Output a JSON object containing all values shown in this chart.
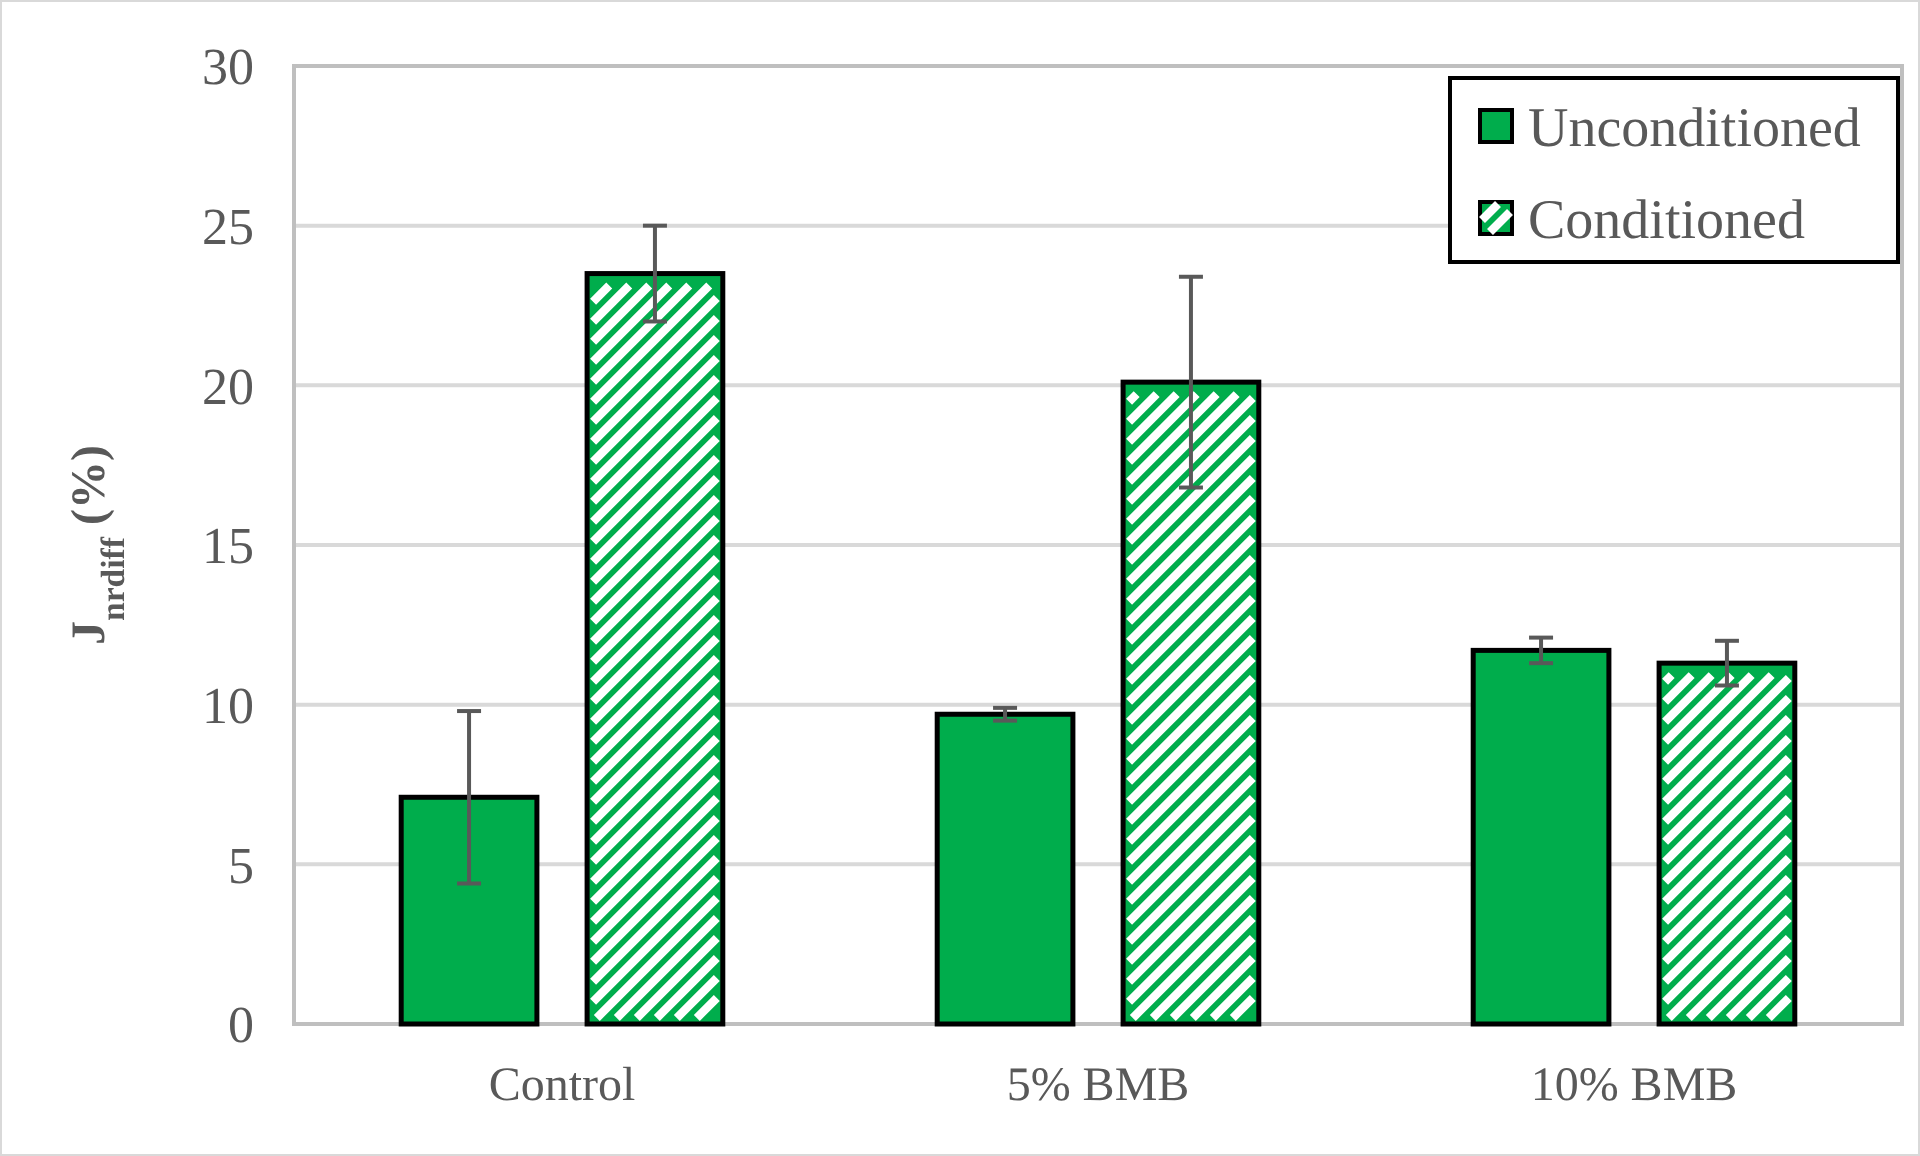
{
  "chart_data": {
    "type": "bar",
    "ylabel": "J$_{nrdiff}$ (%)",
    "categories": [
      "Control",
      "5% BMB",
      "10% BMB"
    ],
    "series": [
      {
        "name": "Unconditioned",
        "color": "#00ad4c",
        "values": [
          7.1,
          9.7,
          11.7
        ],
        "errors": [
          2.7,
          0.2,
          0.4
        ]
      },
      {
        "name": "Conditioned",
        "color": "#00ad4c",
        "values": [
          23.5,
          20.1,
          11.3
        ],
        "errors": [
          1.5,
          3.3,
          0.7
        ]
      }
    ],
    "ylim": [
      0,
      30
    ],
    "yticks": [
      0,
      5,
      10,
      15,
      20,
      25,
      30
    ],
    "grid": "y",
    "legend": "top right"
  }
}
